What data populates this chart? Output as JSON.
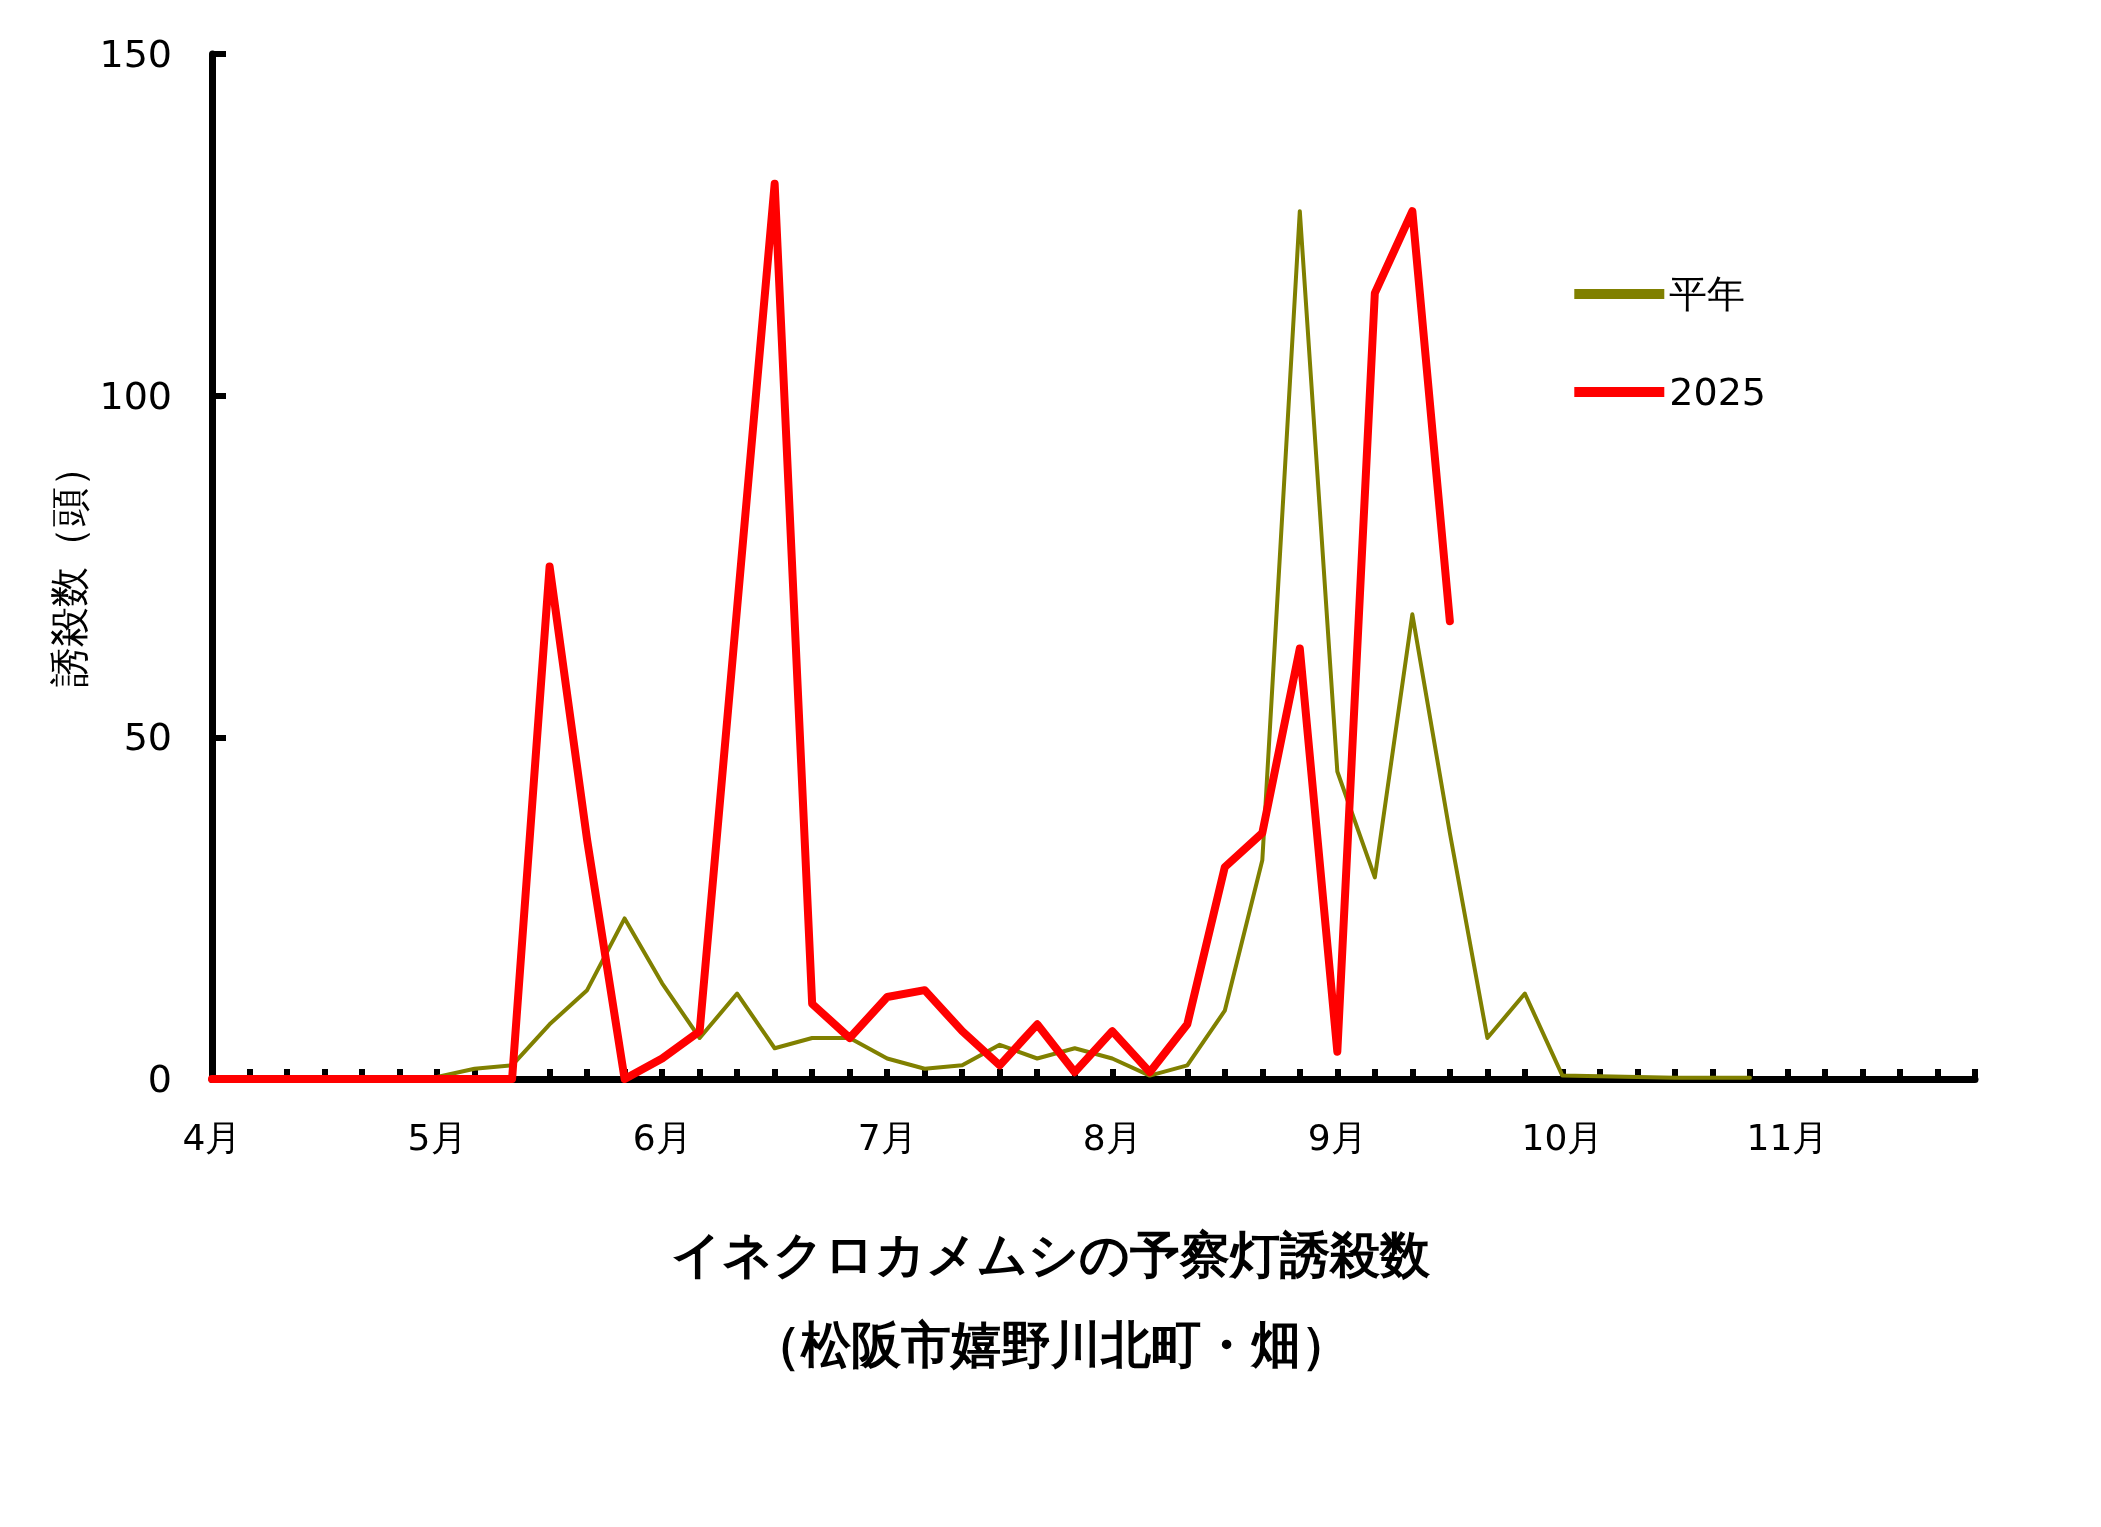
{
  "chart_data": {
    "type": "line",
    "title": "イネクロカメムシの予察灯誘殺数",
    "subtitle": "（松阪市嬉野川北町・畑）",
    "ylabel": "誘殺数（頭）",
    "categories": [
      "4月",
      null,
      null,
      null,
      null,
      null,
      "5月",
      null,
      null,
      null,
      null,
      null,
      "6月",
      null,
      null,
      null,
      null,
      null,
      "7月",
      null,
      null,
      null,
      null,
      null,
      "8月",
      null,
      null,
      null,
      null,
      null,
      "9月",
      null,
      null,
      null,
      null,
      null,
      "10月",
      null,
      null,
      null,
      null,
      null,
      "11月",
      null,
      null,
      null,
      null,
      null
    ],
    "series": [
      {
        "name": "平年",
        "color": "#808000",
        "values": [
          null,
          null,
          null,
          null,
          null,
          null,
          0.3,
          1.5,
          2,
          8,
          13,
          23.5,
          14,
          6,
          12.5,
          4.5,
          6,
          6,
          3,
          1.5,
          2,
          5,
          3,
          4.5,
          3,
          0.5,
          2,
          10,
          32,
          127,
          45,
          29.5,
          68,
          36,
          6,
          12.5,
          0.5,
          0.4,
          0.3,
          0.2,
          0.2,
          0.2,
          null,
          null,
          null,
          null,
          null,
          null
        ]
      },
      {
        "name": "2025",
        "color": "#ff0000",
        "values": [
          0,
          0,
          0,
          0,
          0,
          0,
          0,
          0,
          0,
          75,
          35,
          0,
          3,
          7,
          69,
          131,
          11,
          6,
          12,
          13,
          7,
          2,
          8,
          1,
          7,
          1,
          8,
          31,
          36,
          63,
          4,
          115,
          127,
          67,
          null,
          null,
          null,
          null,
          null,
          null,
          null,
          null,
          null,
          null,
          null,
          null,
          null,
          null
        ]
      }
    ],
    "ylim": [
      0,
      150
    ],
    "yticks": [
      0,
      50,
      100,
      150
    ],
    "grid": false,
    "legend": "top right",
    "marker": "none",
    "line_style": "solid"
  }
}
